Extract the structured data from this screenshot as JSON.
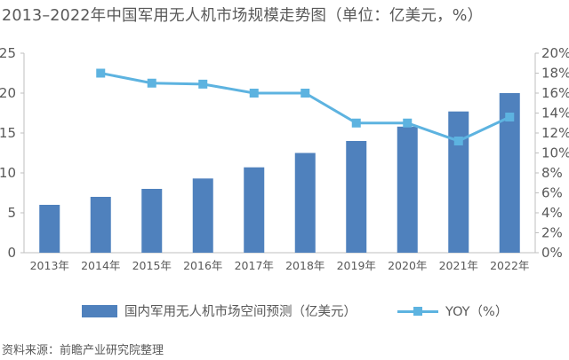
{
  "title": "2013–2022年中国军用无人机市场规模走势图（单位：亿美元，%）",
  "source": "资料来源：前瞻产业研究院整理",
  "colors": {
    "bar": "#4f81bd",
    "line": "#5db3e0",
    "axis": "#bfbfbf",
    "text": "#595959"
  },
  "chart_data": {
    "type": "bar",
    "categories": [
      "2013年",
      "2014年",
      "2015年",
      "2016年",
      "2017年",
      "2018年",
      "2019年",
      "2020年",
      "2021年",
      "2022年"
    ],
    "series": [
      {
        "name": "国内军用无人机市场空间预测（亿美元）",
        "type": "bar",
        "axis": "left",
        "values": [
          6.0,
          7.0,
          8.0,
          9.3,
          10.7,
          12.5,
          14.0,
          15.8,
          17.7,
          20.0
        ]
      },
      {
        "name": "YOY（%）",
        "type": "line",
        "axis": "right",
        "values": [
          null,
          18.0,
          17.0,
          16.9,
          16.0,
          16.0,
          13.0,
          13.0,
          11.2,
          13.6
        ]
      }
    ],
    "ylim_left": [
      0,
      25
    ],
    "yticks_left": [
      "0",
      "5",
      "10",
      "15",
      "20",
      "25"
    ],
    "ylim_right": [
      0,
      20
    ],
    "yticks_right": [
      "0%",
      "2%",
      "4%",
      "6%",
      "8%",
      "10%",
      "12%",
      "14%",
      "16%",
      "18%",
      "20%"
    ],
    "grid": false,
    "legend_position": "bottom"
  }
}
